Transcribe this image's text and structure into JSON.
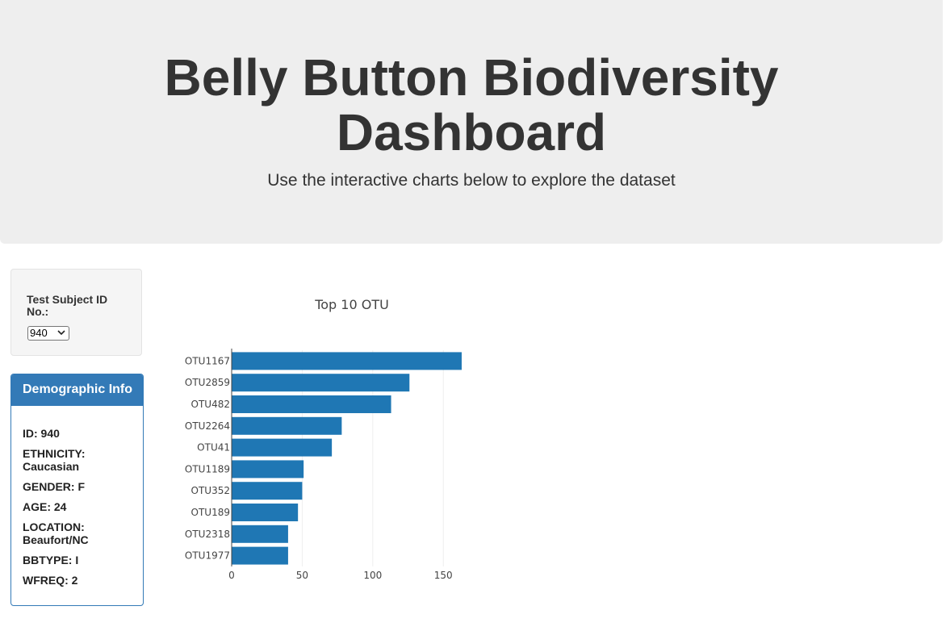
{
  "header": {
    "title_line1": "Belly Button Biodiversity",
    "title_line2": "Dashboard",
    "subtitle": "Use the interactive charts below to explore the dataset"
  },
  "selector": {
    "label": "Test Subject ID No.:",
    "selected_value": "940",
    "chevron_icon": "chevron-down-icon"
  },
  "demographics": {
    "heading": "Demographic Info",
    "rows": [
      "ID: 940",
      "ETHNICITY: Caucasian",
      "GENDER: F",
      "AGE: 24",
      "LOCATION: Beaufort/NC",
      "BBTYPE: I",
      "WFREQ: 2"
    ]
  },
  "colors": {
    "bar": "#1f77b4",
    "panel_accent": "#337ab7",
    "jumbotron_bg": "#eeeeee"
  },
  "chart_data": {
    "type": "bar",
    "orientation": "horizontal",
    "title": "Top 10 OTU",
    "categories": [
      "OTU1167",
      "OTU2859",
      "OTU482",
      "OTU2264",
      "OTU41",
      "OTU1189",
      "OTU352",
      "OTU189",
      "OTU2318",
      "OTU1977"
    ],
    "values": [
      163,
      126,
      113,
      78,
      71,
      51,
      50,
      47,
      40,
      40
    ],
    "xticks": [
      "0",
      "50",
      "100",
      "150"
    ],
    "xtick_values": [
      0,
      50,
      100,
      150
    ],
    "xlim": [
      0,
      171.6
    ],
    "grid": true
  }
}
